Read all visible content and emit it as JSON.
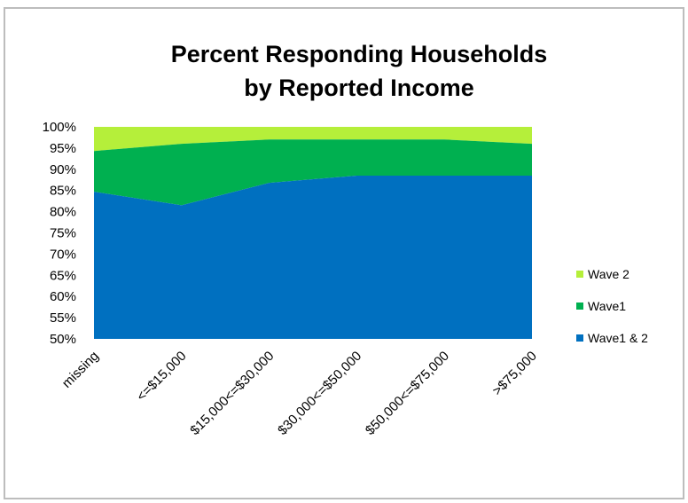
{
  "chart_data": {
    "type": "area",
    "stacked": true,
    "title_lines": [
      "Percent Responding Households",
      "by Reported Income"
    ],
    "xlabel": "",
    "ylabel": "",
    "categories": [
      "missing",
      "<=$15,000",
      "$15,000<=$30,000",
      "$30,000<=$50,000",
      "$50,000<=$75,000",
      ">$75,000"
    ],
    "ylim": [
      0.5,
      1.0
    ],
    "yticks": [
      "50%",
      "55%",
      "60%",
      "65%",
      "70%",
      "75%",
      "80%",
      "85%",
      "90%",
      "95%",
      "100%"
    ],
    "grid": false,
    "legend_position": "right",
    "series": [
      {
        "name": "Wave1 & 2",
        "color": "#0070c0",
        "values": [
          0.847,
          0.815,
          0.868,
          0.885,
          0.885,
          0.885
        ]
      },
      {
        "name": "Wave1",
        "color": "#00b050",
        "values": [
          0.943,
          0.96,
          0.97,
          0.97,
          0.97,
          0.96
        ]
      },
      {
        "name": "Wave 2",
        "color": "#b5ef3a",
        "values": [
          1.0,
          1.0,
          1.0,
          1.0,
          1.0,
          1.0
        ]
      }
    ]
  }
}
